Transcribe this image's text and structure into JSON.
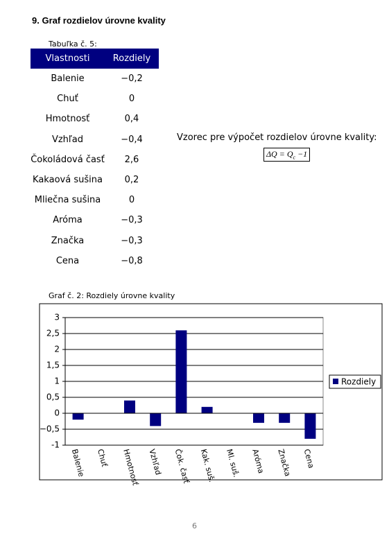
{
  "heading": "9. Graf rozdielov úrovne kvality",
  "table": {
    "caption": "Tabuľka č. 5:",
    "header": [
      "Vlastnosti",
      "Rozdiely"
    ],
    "rows": [
      [
        "Balenie",
        "−0,2"
      ],
      [
        "Chuť",
        "0"
      ],
      [
        "Hmotnosť",
        "0,4"
      ],
      [
        "Vzhľad",
        "−0,4"
      ],
      [
        "Čokoládová časť",
        "2,6"
      ],
      [
        "Kakaová sušina",
        "0,2"
      ],
      [
        "Mliečna sušina",
        "0"
      ],
      [
        "Aróma",
        "−0,3"
      ],
      [
        "Značka",
        "−0,3"
      ],
      [
        "Cena",
        "−0,8"
      ]
    ]
  },
  "formula": {
    "label": "Vzorec pre výpočet rozdielov úrovne kvality:",
    "parts": [
      "ΔQ",
      "=",
      "Q",
      "c",
      "−1"
    ]
  },
  "chart_data": {
    "type": "bar",
    "title": "Graf č. 2: Rozdiely úrovne kvality",
    "categories": [
      "Balenie",
      "Chuť",
      "Hmotnosť",
      "Vzhľad",
      "Čok. časť",
      "Kak. suš.",
      "Ml. suš.",
      "Aróma",
      "Značka",
      "Cena"
    ],
    "series": [
      {
        "name": "Rozdiely",
        "color": "#000080",
        "values": [
          -0.2,
          0,
          0.4,
          -0.4,
          2.6,
          0.2,
          0,
          -0.3,
          -0.3,
          -0.8
        ]
      }
    ],
    "ylim": [
      -1,
      3
    ],
    "yticks": [
      -1,
      {
        "value": -0.5,
        "label": "−0,5"
      },
      0,
      {
        "value": 0.5,
        "label": "0,5"
      },
      1,
      {
        "value": 1.5,
        "label": "1,5"
      },
      2,
      {
        "value": 2.5,
        "label": "2,5"
      },
      3
    ],
    "grid": true,
    "legend": "right"
  },
  "page_number": "6"
}
